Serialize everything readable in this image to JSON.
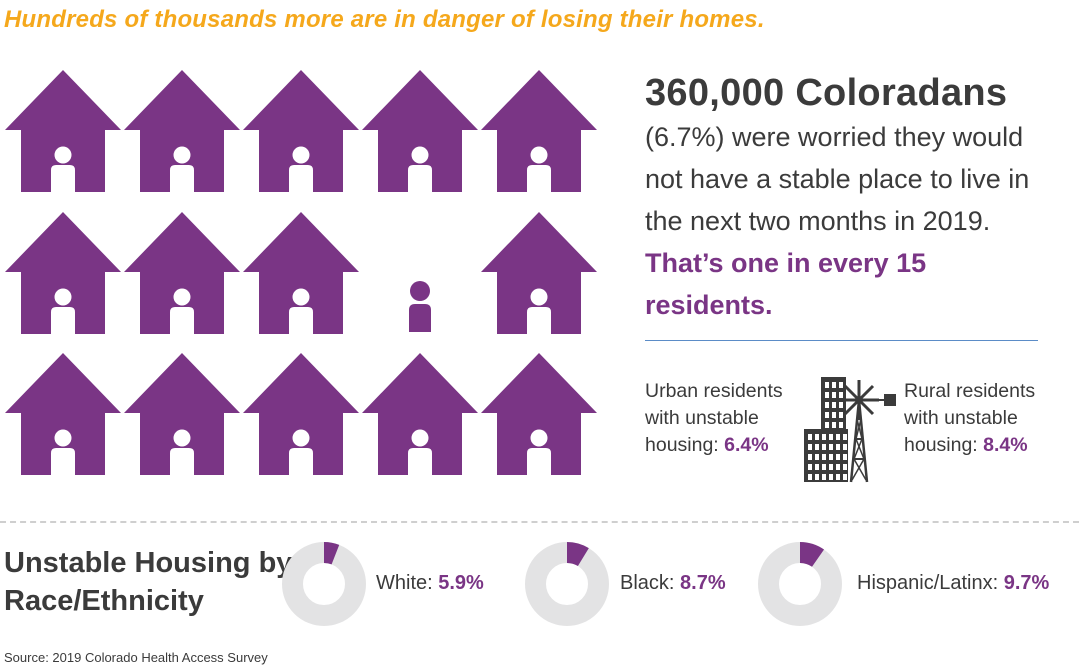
{
  "headline": "Hundreds of thousands more are in danger of losing their homes.",
  "colors": {
    "accent": "#7a3585",
    "headline": "#f5a81c",
    "donut_track": "#e3e3e4",
    "rule": "#5b8cc7",
    "text": "#3b3b3b"
  },
  "icon_grid": {
    "rows": 3,
    "cols": 5,
    "unhoused_index": 8,
    "icon": "house-with-person-icon"
  },
  "stat": {
    "big": "360,000 Coloradans",
    "body": "(6.7%) were worried they would not have a stable place to live in the next two months in 2019.",
    "emphasis": "That’s one in every 15 residents."
  },
  "urban": {
    "text": "Urban residents with unstable housing:",
    "pct": "6.4%"
  },
  "rural": {
    "text": "Rural residents with unstable housing:",
    "pct": "8.4%"
  },
  "section_title": "Unstable Housing by Race/Ethnicity",
  "chart_data": {
    "type": "pie",
    "title": "Unstable Housing by Race/Ethnicity",
    "categories": [
      "White",
      "Black",
      "Hispanic/Latinx"
    ],
    "values": [
      5.9,
      8.7,
      9.7
    ],
    "labels": [
      "White:",
      "Black:",
      "Hispanic/Latinx:"
    ],
    "value_labels": [
      "5.9%",
      "8.7%",
      "9.7%"
    ]
  },
  "source": "Source: 2019 Colorado Health Access Survey"
}
